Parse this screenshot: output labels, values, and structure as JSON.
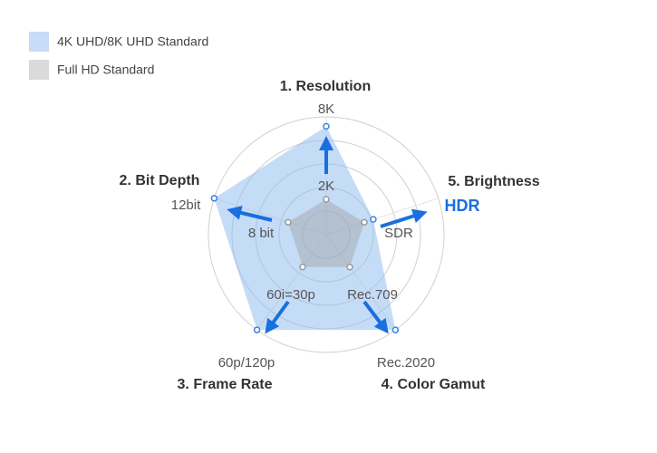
{
  "chart_data": {
    "type": "radar",
    "categories": [
      "1. Resolution",
      "5. Brightness",
      "4. Color Gamut",
      "3. Frame Rate",
      "2. Bit Depth"
    ],
    "ylim": [
      0,
      5
    ],
    "yticks": [
      1,
      2,
      3,
      4,
      5
    ],
    "series": [
      {
        "name": "4K UHD/8K UHD Standard",
        "color": "#8cb9f0",
        "values": [
          4.6,
          2.1,
          5,
          5,
          5
        ],
        "value_labels": [
          "8K",
          "HDR",
          "Rec.2020",
          "60p/120p",
          "12bit"
        ]
      },
      {
        "name": "Full HD Standard",
        "color": "#bcbcbc",
        "values": [
          1.5,
          1.7,
          1.7,
          1.7,
          1.7
        ],
        "value_labels": [
          "2K",
          "SDR",
          "Rec.709",
          "60i=30p",
          "8 bit"
        ]
      }
    ]
  }
}
